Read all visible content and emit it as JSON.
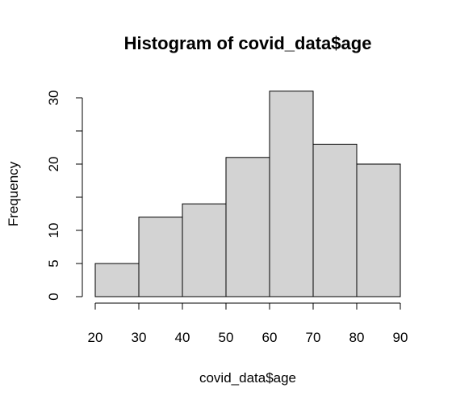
{
  "chart_data": {
    "type": "bar",
    "title": "Histogram of covid_data$age",
    "xlabel": "covid_data$age",
    "ylabel": "Frequency",
    "bins": [
      {
        "start": 20,
        "end": 30,
        "count": 5
      },
      {
        "start": 30,
        "end": 40,
        "count": 12
      },
      {
        "start": 40,
        "end": 50,
        "count": 14
      },
      {
        "start": 50,
        "end": 60,
        "count": 21
      },
      {
        "start": 60,
        "end": 70,
        "count": 31
      },
      {
        "start": 70,
        "end": 80,
        "count": 23
      },
      {
        "start": 80,
        "end": 90,
        "count": 20
      }
    ],
    "xlim": [
      20,
      90
    ],
    "ylim": [
      0,
      30
    ],
    "x_ticks": [
      "20",
      "30",
      "40",
      "50",
      "60",
      "70",
      "80",
      "90"
    ],
    "y_ticks": [
      "0",
      "5",
      "10",
      "15",
      "20",
      "25",
      "30"
    ],
    "y_tick_labels_shown": [
      "0",
      "5",
      "10",
      "20",
      "30"
    ],
    "bar_color": "#d3d3d3",
    "grid": false
  }
}
